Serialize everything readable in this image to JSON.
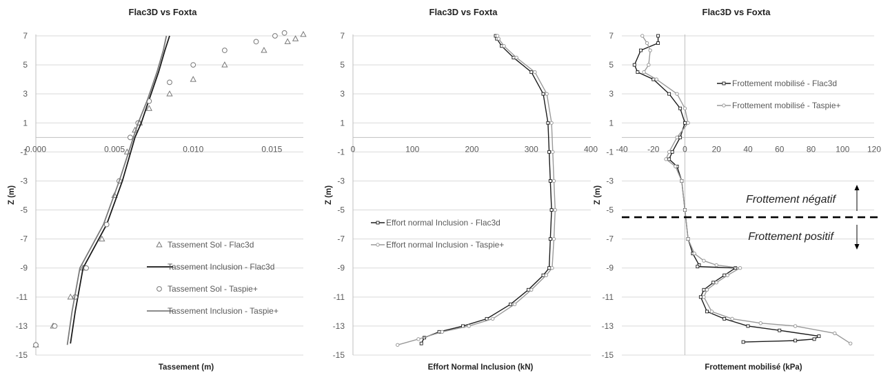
{
  "chart_data": [
    {
      "type": "line",
      "title": "Flac3D vs Foxta",
      "xlabel": "Tassement (m)",
      "ylabel": "Z (m)",
      "xlim": [
        0,
        0.017
      ],
      "ylim": [
        -15,
        7
      ],
      "x_ticks": [
        "0.000",
        "0.005",
        "0.010",
        "0.015"
      ],
      "y_ticks": [
        "7",
        "5",
        "3",
        "1",
        "-1",
        "-3",
        "-5",
        "-7",
        "-9",
        "-11",
        "-13",
        "-15"
      ],
      "grid": "horizontal",
      "legend_position": "bottom-right",
      "series": [
        {
          "name": "Tassement Sol - Flac3d",
          "style": "triangle",
          "color": "#777777",
          "x": [
            0.0,
            0.0011,
            0.0022,
            0.003,
            0.0042,
            0.005,
            0.0058,
            0.0063,
            0.0066,
            0.0072,
            0.0085,
            0.01,
            0.012,
            0.0145,
            0.016,
            0.0165,
            0.017
          ],
          "y": [
            -14.3,
            -13,
            -11,
            -9,
            -7,
            -4,
            -1,
            0.5,
            1,
            2,
            3,
            4,
            5,
            6,
            6.6,
            6.8,
            7.1
          ]
        },
        {
          "name": "Tassement Inclusion - Flac3d",
          "style": "line",
          "color": "#1a1a1a",
          "x": [
            0.0022,
            0.0025,
            0.003,
            0.0045,
            0.0055,
            0.0063,
            0.0067,
            0.0072,
            0.0078,
            0.0082,
            0.0085
          ],
          "y": [
            -14.2,
            -12,
            -9,
            -6,
            -3,
            0,
            1,
            2.6,
            4.5,
            6,
            7
          ]
        },
        {
          "name": "Tassement Sol - Taspie+",
          "style": "circle",
          "color": "#777777",
          "x": [
            0.0,
            0.0012,
            0.0025,
            0.0032,
            0.0045,
            0.0053,
            0.006,
            0.0065,
            0.0072,
            0.0085,
            0.01,
            0.012,
            0.014,
            0.0152,
            0.0158
          ],
          "y": [
            -14.3,
            -13,
            -11,
            -9,
            -6,
            -3,
            0,
            1,
            2.5,
            3.8,
            5,
            6,
            6.6,
            7,
            7.2
          ]
        },
        {
          "name": "Tassement Inclusion - Taspie+",
          "style": "line",
          "color": "#7a7a7a",
          "x": [
            0.002,
            0.0023,
            0.0028,
            0.0043,
            0.0053,
            0.0062,
            0.0065,
            0.0071,
            0.0077,
            0.0081,
            0.0083
          ],
          "y": [
            -14.3,
            -12,
            -9,
            -6,
            -3,
            0,
            1,
            2.6,
            4.5,
            6,
            7
          ]
        }
      ]
    },
    {
      "type": "line",
      "title": "Flac3D vs Foxta",
      "xlabel": "Effort Normal Inclusion (kN)",
      "ylabel": "Z (m)",
      "xlim": [
        0,
        400
      ],
      "ylim": [
        -15,
        7
      ],
      "x_ticks": [
        "0",
        "100",
        "200",
        "300",
        "400"
      ],
      "y_ticks": [
        "7",
        "5",
        "3",
        "1",
        "-1",
        "-3",
        "-5",
        "-7",
        "-9",
        "-11",
        "-13",
        "-15"
      ],
      "grid": "horizontal",
      "legend_position": "middle-left",
      "series": [
        {
          "name": "Effort normal Inclusion - Flac3d",
          "style": "line-square",
          "color": "#1a1a1a",
          "x": [
            115,
            120,
            145,
            185,
            225,
            265,
            295,
            320,
            330,
            332,
            334,
            332,
            330,
            328,
            320,
            300,
            270,
            250,
            242,
            240
          ],
          "y": [
            -14.2,
            -13.8,
            -13.4,
            -13,
            -12.5,
            -11.5,
            -10.5,
            -9.5,
            -9,
            -7,
            -5,
            -3,
            -1,
            1,
            3,
            4.5,
            5.5,
            6.3,
            6.8,
            7
          ]
        },
        {
          "name": "Effort normal Inclusion - Taspie+",
          "style": "line-circle",
          "color": "#999999",
          "x": [
            75,
            110,
            150,
            195,
            235,
            272,
            300,
            325,
            335,
            338,
            340,
            338,
            336,
            334,
            326,
            306,
            275,
            254,
            245,
            243
          ],
          "y": [
            -14.3,
            -13.9,
            -13.4,
            -13,
            -12.5,
            -11.5,
            -10.5,
            -9.5,
            -9,
            -7,
            -5,
            -3,
            -1,
            1,
            3,
            4.5,
            5.5,
            6.3,
            6.8,
            7
          ]
        }
      ]
    },
    {
      "type": "line",
      "title": "Flac3D vs Foxta",
      "xlabel": "Frottement mobilisé (kPa)",
      "ylabel": "Z (m)",
      "xlim": [
        -40,
        120
      ],
      "ylim": [
        -15,
        7
      ],
      "x_ticks": [
        "-40",
        "-20",
        "0",
        "20",
        "40",
        "60",
        "80",
        "100",
        "120"
      ],
      "y_ticks": [
        "7",
        "5",
        "3",
        "1",
        "-1",
        "-3",
        "-5",
        "-7",
        "-9",
        "-11",
        "-13",
        "-15"
      ],
      "grid": "horizontal",
      "legend_position": "top-right",
      "annotations": {
        "upper_zone": "Frottement négatif",
        "lower_zone": "Frottement positif",
        "divider_z": -5.5
      },
      "series": [
        {
          "name": "Frottement mobilisé - Flac3d",
          "style": "line-square",
          "color": "#1a1a1a",
          "x": [
            -17,
            -17,
            -28,
            -32,
            -30,
            -20,
            -10,
            -3,
            0,
            -3,
            -8,
            -10,
            -5,
            -2,
            0,
            2,
            5,
            9,
            8,
            32,
            25,
            18,
            12,
            10,
            14,
            25,
            40,
            60,
            85,
            82,
            70,
            37
          ],
          "y": [
            7,
            6.5,
            6,
            5,
            4.5,
            4,
            3,
            2,
            1,
            0,
            -1,
            -1.5,
            -2,
            -3,
            -5,
            -7,
            -8,
            -8.8,
            -8.9,
            -9,
            -9.5,
            -10,
            -10.5,
            -11,
            -12,
            -12.5,
            -13,
            -13.3,
            -13.7,
            -13.9,
            -14,
            -14.1
          ]
        },
        {
          "name": "Frottement mobilisé - Taspie+",
          "style": "line-circle",
          "color": "#999999",
          "x": [
            -27,
            -24,
            -22,
            -23,
            -26,
            -18,
            -5,
            0,
            2,
            -5,
            -10,
            -12,
            -6,
            -2,
            0,
            2,
            6,
            12,
            20,
            35,
            27,
            20,
            14,
            12,
            17,
            30,
            48,
            70,
            95,
            105
          ],
          "y": [
            7,
            6.5,
            6,
            5,
            4.5,
            4,
            3,
            2,
            1,
            0,
            -1,
            -1.5,
            -2,
            -3,
            -5,
            -7,
            -8,
            -8.5,
            -8.8,
            -9,
            -9.5,
            -10,
            -10.5,
            -11,
            -12,
            -12.5,
            -12.8,
            -13,
            -13.5,
            -14.2
          ]
        }
      ]
    }
  ]
}
